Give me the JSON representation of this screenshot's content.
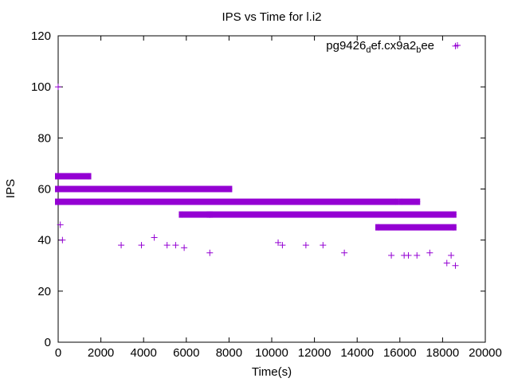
{
  "chart_data": {
    "type": "scatter",
    "title": "IPS vs Time for l.i2",
    "xlabel": "Time(s)",
    "ylabel": "IPS",
    "xlim": [
      0,
      20000
    ],
    "ylim": [
      0,
      120
    ],
    "xticks": [
      0,
      2000,
      4000,
      6000,
      8000,
      10000,
      12000,
      14000,
      16000,
      18000,
      20000
    ],
    "yticks": [
      0,
      20,
      40,
      60,
      80,
      100,
      120
    ],
    "grid": false,
    "legend_position": "top-right",
    "marker": "plus",
    "color": "#9400d3",
    "series": [
      {
        "name": "pg9426_def.cx9a2_bee",
        "dense_bands": [
          {
            "y": 65,
            "x_start": 0,
            "x_end": 1400
          },
          {
            "y": 60,
            "x_start": 0,
            "x_end": 7200
          },
          {
            "y": 60,
            "x_start": 7200,
            "x_end": 8000
          },
          {
            "y": 55,
            "x_start": 0,
            "x_end": 15800
          },
          {
            "y": 55,
            "x_start": 16100,
            "x_end": 16800
          },
          {
            "y": 50,
            "x_start": 5800,
            "x_end": 7100
          },
          {
            "y": 50,
            "x_start": 7100,
            "x_end": 18500
          },
          {
            "y": 45,
            "x_start": 15000,
            "x_end": 18500
          }
        ],
        "points": [
          [
            0,
            100
          ],
          [
            100,
            46
          ],
          [
            200,
            40
          ],
          [
            2950,
            38
          ],
          [
            3900,
            38
          ],
          [
            4500,
            41
          ],
          [
            5100,
            38
          ],
          [
            5500,
            38
          ],
          [
            5900,
            37
          ],
          [
            7100,
            35
          ],
          [
            10300,
            39
          ],
          [
            10500,
            38
          ],
          [
            11600,
            38
          ],
          [
            12400,
            38
          ],
          [
            13400,
            35
          ],
          [
            15600,
            34
          ],
          [
            16200,
            34
          ],
          [
            16400,
            34
          ],
          [
            16800,
            34
          ],
          [
            17400,
            35
          ],
          [
            18200,
            31
          ],
          [
            18400,
            34
          ],
          [
            18600,
            30
          ],
          [
            18600,
            116
          ]
        ]
      }
    ]
  }
}
